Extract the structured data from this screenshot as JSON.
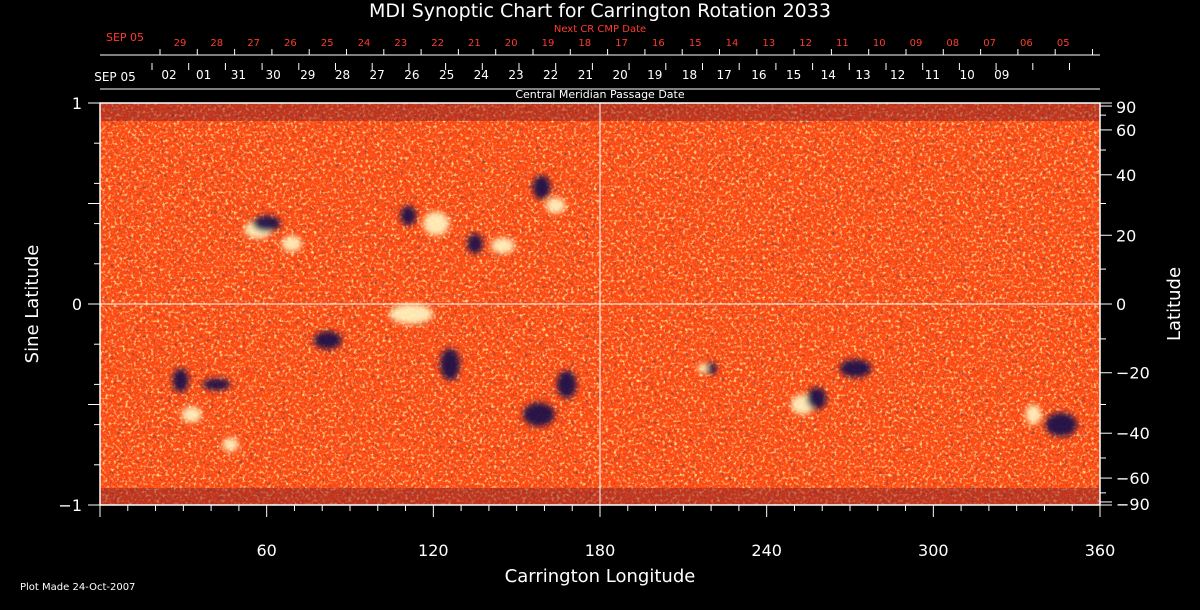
{
  "chart_data": {
    "type": "heatmap",
    "title": "MDI Synoptic Chart for Carrington Rotation 2033",
    "xlabel": "Carrington Longitude",
    "ylabel_left": "Sine Latitude",
    "ylabel_right": "Latitude",
    "xlim": [
      0,
      360
    ],
    "ylim": [
      -1,
      1
    ],
    "x_ticks": [
      60,
      120,
      180,
      240,
      300,
      360
    ],
    "left_y_ticks": [
      {
        "value": 1,
        "label": "1"
      },
      {
        "value": 0,
        "label": "0"
      },
      {
        "value": -1,
        "label": "−1"
      }
    ],
    "right_lat_ticks": [
      {
        "lat": 90,
        "label": "90"
      },
      {
        "lat": 60,
        "label": "60"
      },
      {
        "lat": 40,
        "label": "40"
      },
      {
        "lat": 20,
        "label": "20"
      },
      {
        "lat": 0,
        "label": "0"
      },
      {
        "lat": -20,
        "label": "−20"
      },
      {
        "lat": -40,
        "label": "−40"
      },
      {
        "lat": -60,
        "label": "−60"
      },
      {
        "lat": -90,
        "label": "−90"
      }
    ],
    "cmp_axis": {
      "label": "Central Meridian Passage Date",
      "first_label": "SEP 05",
      "dates": [
        "02",
        "01",
        "31",
        "30",
        "29",
        "28",
        "27",
        "26",
        "25",
        "24",
        "23",
        "22",
        "21",
        "20",
        "19",
        "18",
        "17",
        "16",
        "15",
        "14",
        "13",
        "12",
        "11",
        "10",
        "09"
      ]
    },
    "next_cmp_axis": {
      "label": "Next CR CMP Date",
      "first_label": "SEP 05",
      "dates": [
        "29",
        "28",
        "27",
        "26",
        "25",
        "24",
        "23",
        "22",
        "21",
        "20",
        "19",
        "18",
        "17",
        "16",
        "15",
        "14",
        "13",
        "12",
        "11",
        "10",
        "09",
        "08",
        "07",
        "06",
        "05"
      ]
    },
    "grid_lines": {
      "longitude": [
        180
      ],
      "sine_latitude": [
        0
      ]
    },
    "active_regions": [
      {
        "lon": 57,
        "sinlat": 0.37,
        "rx": 14,
        "ry": 9,
        "pos": true
      },
      {
        "lon": 60,
        "sinlat": 0.4,
        "rx": 14,
        "ry": 8,
        "pos": false
      },
      {
        "lon": 69,
        "sinlat": 0.3,
        "rx": 10,
        "ry": 8,
        "pos": true
      },
      {
        "lon": 111,
        "sinlat": 0.44,
        "rx": 8,
        "ry": 10,
        "pos": false
      },
      {
        "lon": 121,
        "sinlat": 0.4,
        "rx": 13,
        "ry": 12,
        "pos": true
      },
      {
        "lon": 135,
        "sinlat": 0.3,
        "rx": 8,
        "ry": 10,
        "pos": false
      },
      {
        "lon": 145,
        "sinlat": 0.29,
        "rx": 12,
        "ry": 8,
        "pos": true
      },
      {
        "lon": 159,
        "sinlat": 0.58,
        "rx": 9,
        "ry": 12,
        "pos": false
      },
      {
        "lon": 164,
        "sinlat": 0.49,
        "rx": 10,
        "ry": 8,
        "pos": true
      },
      {
        "lon": 29,
        "sinlat": -0.38,
        "rx": 8,
        "ry": 12,
        "pos": false
      },
      {
        "lon": 33,
        "sinlat": -0.55,
        "rx": 10,
        "ry": 8,
        "pos": true
      },
      {
        "lon": 42,
        "sinlat": -0.4,
        "rx": 14,
        "ry": 6,
        "pos": false
      },
      {
        "lon": 47,
        "sinlat": -0.7,
        "rx": 8,
        "ry": 7,
        "pos": true
      },
      {
        "lon": 82,
        "sinlat": -0.18,
        "rx": 14,
        "ry": 9,
        "pos": false
      },
      {
        "lon": 112,
        "sinlat": -0.05,
        "rx": 22,
        "ry": 10,
        "pos": true
      },
      {
        "lon": 126,
        "sinlat": -0.3,
        "rx": 10,
        "ry": 16,
        "pos": false
      },
      {
        "lon": 158,
        "sinlat": -0.55,
        "rx": 16,
        "ry": 12,
        "pos": false
      },
      {
        "lon": 168,
        "sinlat": -0.4,
        "rx": 10,
        "ry": 14,
        "pos": false
      },
      {
        "lon": 220,
        "sinlat": -0.32,
        "rx": 6,
        "ry": 6,
        "pos": false
      },
      {
        "lon": 217,
        "sinlat": -0.32,
        "rx": 5,
        "ry": 5,
        "pos": true
      },
      {
        "lon": 253,
        "sinlat": -0.5,
        "rx": 12,
        "ry": 10,
        "pos": true
      },
      {
        "lon": 258,
        "sinlat": -0.47,
        "rx": 10,
        "ry": 11,
        "pos": false
      },
      {
        "lon": 272,
        "sinlat": -0.32,
        "rx": 16,
        "ry": 9,
        "pos": false
      },
      {
        "lon": 336,
        "sinlat": -0.55,
        "rx": 8,
        "ry": 10,
        "pos": true
      },
      {
        "lon": 346,
        "sinlat": -0.6,
        "rx": 16,
        "ry": 12,
        "pos": false
      }
    ],
    "colors": {
      "background": "#ff4a12",
      "positive_field": "#fff4c0",
      "negative_field": "#1a0f4a",
      "axes": "#ffffff",
      "next_cmp_text": "#ff3b2f"
    }
  },
  "footer": {
    "plot_made": "Plot Made 24-Oct-2007"
  }
}
